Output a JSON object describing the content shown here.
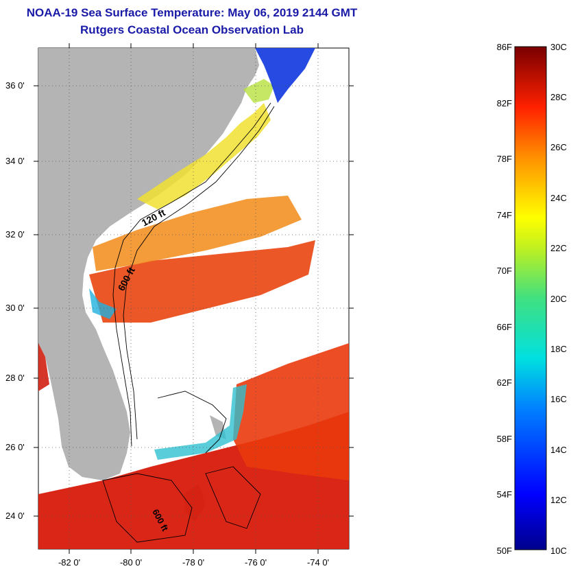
{
  "title": {
    "line1": "NOAA-19 Sea Surface Temperature:  May 06, 2019 2144 GMT",
    "line2": "Rutgers Coastal Ocean Observation Lab"
  },
  "axes": {
    "y_labels": [
      "36 0'",
      "34 0'",
      "32 0'",
      "30 0'",
      "28 0'",
      "26 0'",
      "24 0'"
    ],
    "x_labels": [
      "-82 0'",
      "-80 0'",
      "-78 0'",
      "-76 0'",
      "-74 0'"
    ]
  },
  "contours": {
    "c120": "120 ft",
    "c600": "600 ft",
    "c600b": "600 ft"
  },
  "colorbar": {
    "fahrenheit": [
      "86F",
      "82F",
      "78F",
      "74F",
      "70F",
      "66F",
      "62F",
      "58F",
      "54F",
      "50F"
    ],
    "celsius": [
      "30C",
      "28C",
      "26C",
      "24C",
      "22C",
      "20C",
      "18C",
      "16C",
      "14C",
      "12C",
      "10C"
    ]
  },
  "colors": {
    "land": "#b4b4b4",
    "title": "#1a1aa8",
    "no_data": "#ffffff"
  }
}
